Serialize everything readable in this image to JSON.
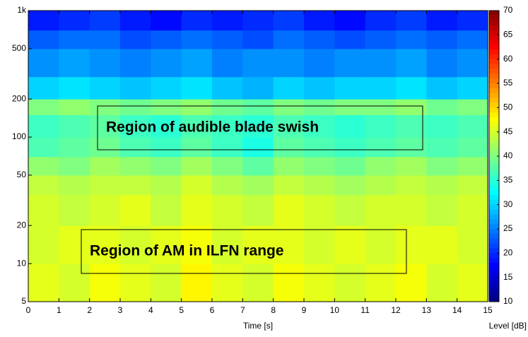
{
  "chart_data": {
    "type": "heatmap",
    "xlabel": "Time [s]",
    "colorbar_label": "Level [dB]",
    "y_log": true,
    "xlim": [
      0,
      15
    ],
    "xticks": [
      0,
      1,
      2,
      3,
      4,
      5,
      6,
      7,
      8,
      9,
      10,
      11,
      12,
      13,
      14,
      15
    ],
    "ylim": [
      5,
      1000
    ],
    "yticks": [
      5,
      10,
      20,
      50,
      100,
      200,
      500,
      {
        "value": 1000,
        "label": "1k"
      }
    ],
    "clim": [
      10,
      70
    ],
    "colorbar_ticks": [
      10,
      15,
      20,
      25,
      30,
      35,
      40,
      45,
      50,
      55,
      60,
      65,
      70
    ],
    "x_bins": [
      0,
      1,
      2,
      3,
      4,
      5,
      6,
      7,
      8,
      9,
      10,
      11,
      12,
      13,
      14,
      15
    ],
    "y_bins": [
      5,
      10,
      20,
      35,
      50,
      70,
      100,
      150,
      200,
      300,
      500,
      700,
      1000
    ],
    "z": [
      [
        46,
        45,
        47,
        46,
        45,
        48,
        46,
        45,
        47,
        46,
        45,
        46,
        47,
        45,
        46
      ],
      [
        45,
        46,
        46,
        45,
        46,
        47,
        45,
        46,
        46,
        45,
        46,
        45,
        46,
        46,
        45
      ],
      [
        45,
        44,
        45,
        46,
        44,
        46,
        45,
        44,
        46,
        45,
        44,
        45,
        45,
        44,
        45
      ],
      [
        44,
        43,
        44,
        44,
        43,
        45,
        43,
        42,
        44,
        43,
        42,
        43,
        44,
        43,
        44
      ],
      [
        41,
        40,
        42,
        41,
        40,
        42,
        40,
        38,
        41,
        40,
        39,
        41,
        42,
        40,
        41
      ],
      [
        37,
        38,
        39,
        37,
        36,
        38,
        36,
        34,
        38,
        37,
        36,
        37,
        38,
        37,
        38
      ],
      [
        36,
        37,
        38,
        36,
        35,
        37,
        36,
        35,
        37,
        36,
        35,
        36,
        37,
        36,
        37
      ],
      [
        40,
        41,
        40,
        39,
        40,
        41,
        39,
        38,
        40,
        39,
        40,
        40,
        41,
        39,
        40
      ],
      [
        30,
        31,
        30,
        29,
        30,
        31,
        29,
        28,
        30,
        29,
        30,
        30,
        31,
        29,
        30
      ],
      [
        26,
        27,
        26,
        25,
        26,
        27,
        25,
        26,
        26,
        25,
        26,
        26,
        27,
        25,
        26
      ],
      [
        23,
        24,
        24,
        22,
        23,
        24,
        23,
        22,
        24,
        23,
        22,
        23,
        24,
        23,
        24
      ],
      [
        19,
        20,
        21,
        19,
        18,
        20,
        19,
        20,
        21,
        19,
        18,
        20,
        21,
        19,
        20
      ]
    ],
    "annotations": [
      "Region of audible blade swish",
      "Region of AM in ILFN range"
    ]
  }
}
